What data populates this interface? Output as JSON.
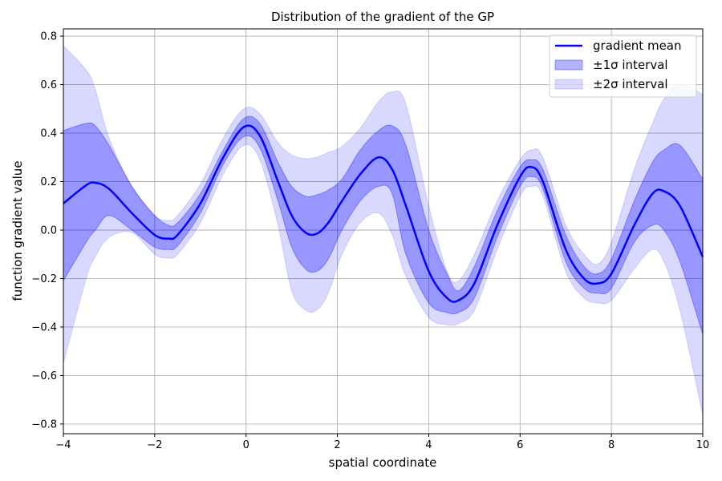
{
  "chart_data": {
    "type": "line",
    "title": "Distribution of the gradient of the GP",
    "xlabel": "spatial coordinate",
    "ylabel": "function gradient value",
    "xlim": [
      -4,
      10
    ],
    "ylim": [
      -0.84,
      0.83
    ],
    "xticks": [
      -4,
      -2,
      0,
      2,
      4,
      6,
      8,
      10
    ],
    "xtick_labels": [
      "−4",
      "−2",
      "0",
      "2",
      "4",
      "6",
      "8",
      "10"
    ],
    "yticks": [
      -0.8,
      -0.6,
      -0.4,
      -0.2,
      0.0,
      0.2,
      0.4,
      0.6,
      0.8
    ],
    "ytick_labels": [
      "−0.8",
      "−0.6",
      "−0.4",
      "−0.2",
      "0.0",
      "0.2",
      "0.4",
      "0.6",
      "0.8"
    ],
    "grid": true,
    "legend_position": "top-right",
    "colors": {
      "mean": "#0000ff",
      "band1": "#0000ff",
      "band2": "#0000ff",
      "grid": "#b0b0b0"
    },
    "x": [
      -4.0,
      -3.5,
      -3.3,
      -3.0,
      -2.5,
      -2.0,
      -1.7,
      -1.5,
      -1.0,
      -0.5,
      -0.05,
      0.3,
      0.7,
      1.0,
      1.3,
      1.55,
      1.8,
      2.1,
      2.5,
      2.9,
      3.2,
      3.5,
      4.0,
      4.4,
      4.65,
      5.0,
      5.5,
      6.0,
      6.25,
      6.5,
      7.0,
      7.4,
      7.7,
      8.0,
      8.5,
      8.9,
      9.15,
      9.5,
      10.0
    ],
    "series": [
      {
        "name": "gradient mean",
        "role": "mean",
        "values": [
          0.11,
          0.185,
          0.195,
          0.17,
          0.07,
          -0.02,
          -0.035,
          -0.02,
          0.11,
          0.3,
          0.425,
          0.39,
          0.2,
          0.06,
          -0.01,
          -0.015,
          0.03,
          0.12,
          0.23,
          0.3,
          0.25,
          0.1,
          -0.17,
          -0.28,
          -0.29,
          -0.22,
          0.02,
          0.22,
          0.26,
          0.2,
          -0.08,
          -0.2,
          -0.22,
          -0.18,
          0.02,
          0.15,
          0.16,
          0.1,
          -0.11
        ]
      },
      {
        "name": "±1σ interval",
        "role": "band",
        "upper": [
          0.41,
          0.44,
          0.43,
          0.35,
          0.18,
          0.06,
          0.02,
          0.03,
          0.15,
          0.33,
          0.46,
          0.44,
          0.28,
          0.18,
          0.14,
          0.145,
          0.165,
          0.21,
          0.33,
          0.41,
          0.43,
          0.35,
          0.0,
          -0.18,
          -0.25,
          -0.15,
          0.08,
          0.26,
          0.29,
          0.25,
          -0.02,
          -0.15,
          -0.18,
          -0.12,
          0.12,
          0.28,
          0.33,
          0.35,
          0.21
        ],
        "lower": [
          -0.21,
          -0.05,
          0.0,
          0.06,
          0.0,
          -0.07,
          -0.08,
          -0.065,
          0.07,
          0.27,
          0.385,
          0.34,
          0.12,
          -0.07,
          -0.16,
          -0.17,
          -0.12,
          0.0,
          0.12,
          0.18,
          0.15,
          -0.1,
          -0.3,
          -0.34,
          -0.34,
          -0.28,
          -0.03,
          0.18,
          0.22,
          0.17,
          -0.13,
          -0.24,
          -0.26,
          -0.24,
          -0.05,
          0.02,
          0.0,
          -0.13,
          -0.43
        ]
      },
      {
        "name": "±2σ interval",
        "role": "band",
        "upper": [
          0.76,
          0.66,
          0.58,
          0.38,
          0.18,
          0.06,
          0.04,
          0.06,
          0.19,
          0.38,
          0.5,
          0.48,
          0.36,
          0.31,
          0.295,
          0.3,
          0.32,
          0.345,
          0.42,
          0.53,
          0.57,
          0.52,
          0.1,
          -0.17,
          -0.21,
          -0.1,
          0.12,
          0.29,
          0.33,
          0.3,
          0.02,
          -0.1,
          -0.14,
          -0.05,
          0.25,
          0.44,
          0.54,
          0.6,
          0.56
        ],
        "lower": [
          -0.55,
          -0.2,
          -0.11,
          -0.03,
          -0.01,
          -0.1,
          -0.115,
          -0.1,
          0.03,
          0.23,
          0.35,
          0.29,
          0.02,
          -0.25,
          -0.33,
          -0.33,
          -0.26,
          -0.1,
          0.03,
          0.07,
          -0.02,
          -0.19,
          -0.36,
          -0.39,
          -0.385,
          -0.33,
          -0.08,
          0.14,
          0.18,
          0.14,
          -0.17,
          -0.28,
          -0.3,
          -0.29,
          -0.16,
          -0.08,
          -0.13,
          -0.33,
          -0.76
        ]
      }
    ]
  },
  "legend": {
    "items": [
      {
        "label": "gradient mean",
        "kind": "line"
      },
      {
        "label": "±1σ interval",
        "kind": "band1"
      },
      {
        "label": "±2σ interval",
        "kind": "band2"
      }
    ]
  }
}
